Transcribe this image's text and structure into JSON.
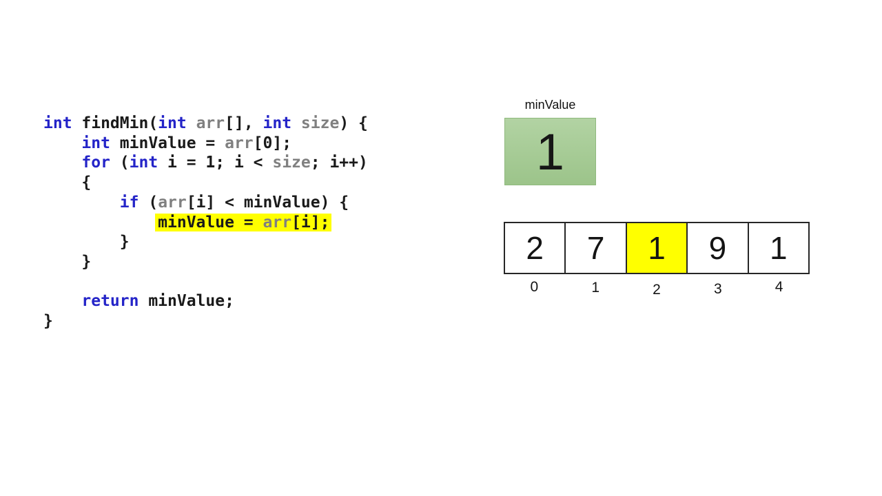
{
  "colors": {
    "background": "#ffffff",
    "code_text": "#1a1a1a",
    "code_keyword": "#2424c8",
    "code_param": "#808080",
    "highlight": "#ffff00",
    "var_box_fill_top": "#b2d3a3",
    "var_box_fill_bottom": "#9cc48a",
    "var_box_border": "#8fb97d",
    "array_border": "#262626"
  },
  "code": {
    "language": "c",
    "lines": [
      {
        "tokens": [
          {
            "text": "int",
            "type": "keyword"
          },
          {
            "text": " findMin(",
            "type": "plain"
          },
          {
            "text": "int",
            "type": "keyword"
          },
          {
            "text": " ",
            "type": "plain"
          },
          {
            "text": "arr",
            "type": "param"
          },
          {
            "text": "[], ",
            "type": "plain"
          },
          {
            "text": "int",
            "type": "keyword"
          },
          {
            "text": " ",
            "type": "plain"
          },
          {
            "text": "size",
            "type": "param"
          },
          {
            "text": ") {",
            "type": "plain"
          }
        ]
      },
      {
        "tokens": [
          {
            "text": "    ",
            "type": "plain"
          },
          {
            "text": "int",
            "type": "keyword"
          },
          {
            "text": " minValue = ",
            "type": "plain"
          },
          {
            "text": "arr",
            "type": "param"
          },
          {
            "text": "[0];",
            "type": "plain"
          }
        ]
      },
      {
        "tokens": [
          {
            "text": "    ",
            "type": "plain"
          },
          {
            "text": "for",
            "type": "keyword"
          },
          {
            "text": " (",
            "type": "plain"
          },
          {
            "text": "int",
            "type": "keyword"
          },
          {
            "text": " i = 1; i < ",
            "type": "plain"
          },
          {
            "text": "size",
            "type": "param"
          },
          {
            "text": "; i++)",
            "type": "plain"
          }
        ]
      },
      {
        "tokens": [
          {
            "text": "    {",
            "type": "plain"
          }
        ]
      },
      {
        "tokens": [
          {
            "text": "        ",
            "type": "plain"
          },
          {
            "text": "if",
            "type": "keyword"
          },
          {
            "text": " (",
            "type": "plain"
          },
          {
            "text": "arr",
            "type": "param"
          },
          {
            "text": "[i] < minValue) {",
            "type": "plain"
          }
        ]
      },
      {
        "tokens": [
          {
            "text": "            ",
            "type": "plain"
          },
          {
            "text": "minValue = ",
            "type": "plain",
            "highlight": true
          },
          {
            "text": "arr",
            "type": "param",
            "highlight": true
          },
          {
            "text": "[i];",
            "type": "plain",
            "highlight": true
          }
        ]
      },
      {
        "tokens": [
          {
            "text": "        }",
            "type": "plain"
          }
        ]
      },
      {
        "tokens": [
          {
            "text": "    }",
            "type": "plain"
          }
        ]
      },
      {
        "tokens": []
      },
      {
        "tokens": [
          {
            "text": "    ",
            "type": "plain"
          },
          {
            "text": "return",
            "type": "keyword"
          },
          {
            "text": " minValue;",
            "type": "plain"
          }
        ]
      },
      {
        "tokens": [
          {
            "text": "}",
            "type": "plain"
          }
        ]
      }
    ]
  },
  "visualization": {
    "min_value_box": {
      "label": "minValue",
      "value": "1"
    },
    "array": {
      "cells": [
        {
          "value": "2",
          "index": "0",
          "highlighted": false
        },
        {
          "value": "7",
          "index": "1",
          "highlighted": false
        },
        {
          "value": "1",
          "index": "2",
          "highlighted": true
        },
        {
          "value": "9",
          "index": "3",
          "highlighted": false
        },
        {
          "value": "1",
          "index": "4",
          "highlighted": false
        }
      ]
    }
  }
}
